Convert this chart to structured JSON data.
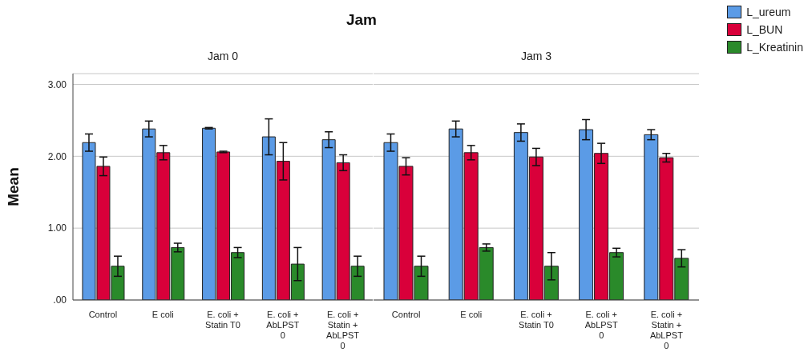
{
  "chart_data": [
    {
      "type": "bar",
      "title": "Jam",
      "subtitle": "Jam 0",
      "ylabel": "Mean",
      "categories": [
        "Control",
        "E coli",
        "E. coli + Statin T0",
        "E. coli + AbLPST 0",
        "E. coli + Statin + AbLPST 0"
      ],
      "series": [
        {
          "color": "#5b9be6",
          "values": [
            2.19,
            2.38,
            2.39,
            2.27,
            2.23
          ],
          "errors": [
            0.12,
            0.11,
            0.01,
            0.25,
            0.11
          ]
        },
        {
          "color": "#d9003a",
          "values": [
            1.86,
            2.05,
            2.06,
            1.93,
            1.91
          ],
          "errors": [
            0.13,
            0.1,
            0.01,
            0.26,
            0.11
          ]
        },
        {
          "color": "#2a8a2a",
          "values": [
            0.47,
            0.73,
            0.66,
            0.5,
            0.47
          ],
          "errors": [
            0.14,
            0.06,
            0.07,
            0.23,
            0.14
          ]
        }
      ],
      "ylim": [
        0,
        3.15
      ],
      "yticks": [
        {
          "value": 0,
          "label": ".00"
        },
        {
          "value": 1,
          "label": "1.00"
        },
        {
          "value": 2,
          "label": "2.00"
        },
        {
          "value": 3,
          "label": "3.00"
        }
      ],
      "grid": "y"
    },
    {
      "type": "bar",
      "subtitle": "Jam 3",
      "categories": [
        "Control",
        "E coli",
        "E. coli + Statin T0",
        "E. coli + AbLPST 0",
        "E. coli + Statin + AbLPST 0"
      ],
      "series": [
        {
          "name": "L_ureum",
          "color": "#5b9be6",
          "values": [
            2.19,
            2.38,
            2.33,
            2.37,
            2.3
          ],
          "errors": [
            0.12,
            0.11,
            0.12,
            0.14,
            0.07
          ]
        },
        {
          "name": "L_BUN",
          "color": "#d9003a",
          "values": [
            1.86,
            2.05,
            1.99,
            2.04,
            1.98
          ],
          "errors": [
            0.12,
            0.1,
            0.12,
            0.14,
            0.06
          ]
        },
        {
          "name": "L_Kreatinin",
          "color": "#2a8a2a",
          "values": [
            0.47,
            0.73,
            0.47,
            0.66,
            0.58
          ],
          "errors": [
            0.14,
            0.05,
            0.19,
            0.06,
            0.12
          ]
        }
      ],
      "ylim": [
        0,
        3.15
      ],
      "yticks": [
        0,
        1,
        2,
        3
      ],
      "grid": "y",
      "tick_labels": "x",
      "legend": "top right"
    }
  ]
}
